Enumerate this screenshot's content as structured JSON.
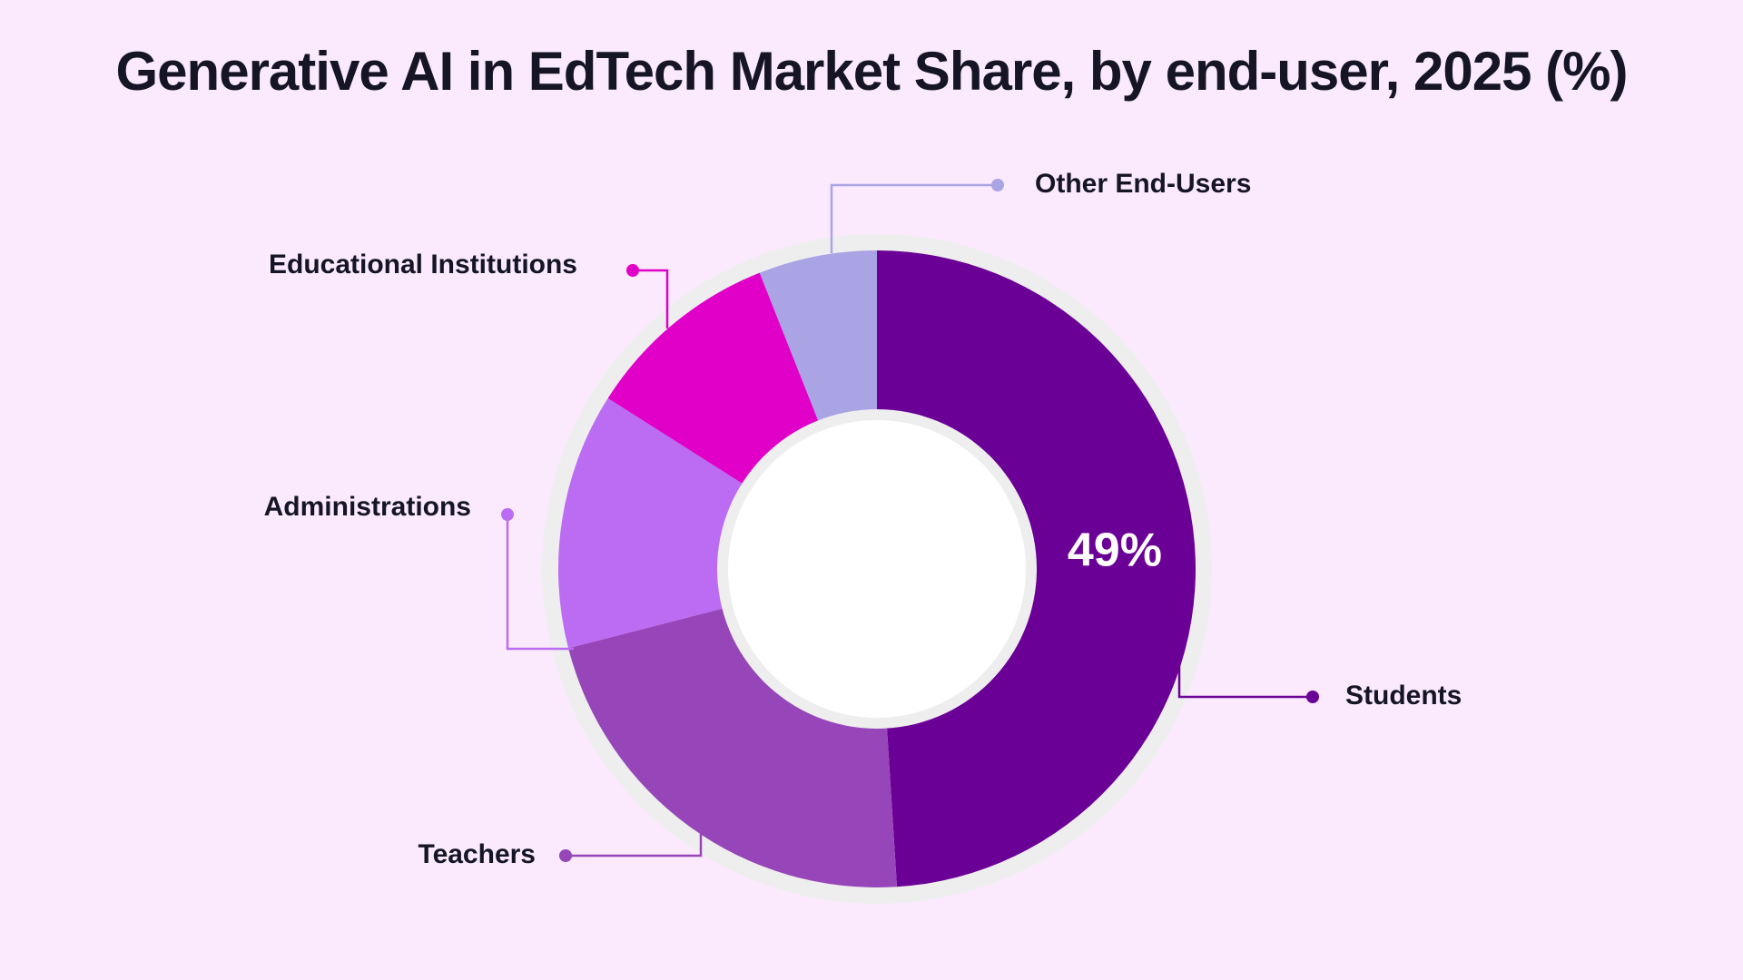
{
  "chart_data": {
    "type": "pie",
    "title": "Generative AI in EdTech Market Share, by end-user, 2025 (%)",
    "categories": [
      "Students",
      "Teachers",
      "Administrations",
      "Educational Institutions",
      "Other End-Users"
    ],
    "values": [
      49,
      22,
      13,
      10,
      6
    ],
    "data_labels": [
      "49%",
      "",
      "",
      "",
      ""
    ],
    "colors": [
      "#6b0096",
      "#9646b8",
      "#bb6cf2",
      "#e000c8",
      "#aaa3e4"
    ],
    "donut": true,
    "start_angle_deg": 0,
    "direction": "clockwise",
    "legend": "callout labels"
  },
  "styling": {
    "background": "#fbeafe",
    "ring_color": "#eeeeee",
    "center_color": "#ffffff",
    "text_color": "#151526"
  }
}
